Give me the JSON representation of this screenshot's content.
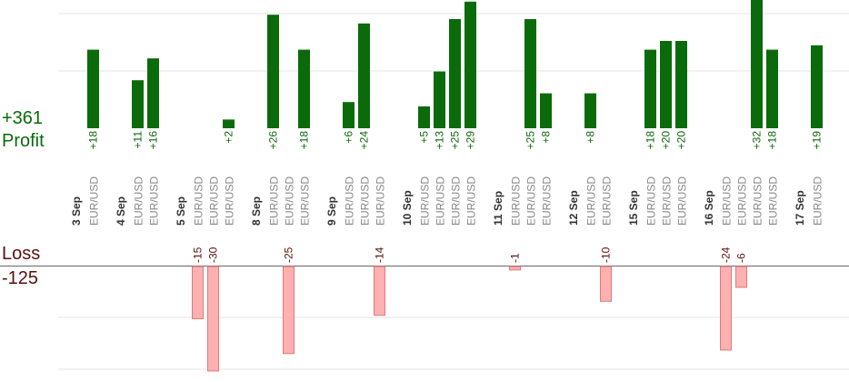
{
  "summary": {
    "profit_total": "+361",
    "profit_label": "Profit",
    "loss_label": "Loss",
    "loss_total": "-125"
  },
  "colors": {
    "profit": "#0b6b0b",
    "profit_text": "#0a6a0a",
    "loss": "#ffb0b0",
    "loss_stroke": "#e07a7a",
    "loss_text": "#5a1010",
    "grid": "#e6e6e6",
    "axis": "#666666",
    "date_text": "#333333",
    "pair_text": "#888888"
  },
  "chart_data": {
    "type": "bar",
    "title": "",
    "xlabel": "",
    "ylabel": "",
    "grid": true,
    "days": [
      {
        "date": "3 Sep",
        "trades": [
          {
            "pair": "EUR/USD",
            "value": 18
          }
        ]
      },
      {
        "date": "4 Sep",
        "trades": [
          {
            "pair": "EUR/USD",
            "value": 11
          },
          {
            "pair": "EUR/USD",
            "value": 16
          }
        ]
      },
      {
        "date": "5 Sep",
        "trades": [
          {
            "pair": "EUR/USD",
            "value": -15
          },
          {
            "pair": "EUR/USD",
            "value": -30
          },
          {
            "pair": "EUR/USD",
            "value": 2
          }
        ]
      },
      {
        "date": "8 Sep",
        "trades": [
          {
            "pair": "EUR/USD",
            "value": 26
          },
          {
            "pair": "EUR/USD",
            "value": -25
          },
          {
            "pair": "EUR/USD",
            "value": 18
          }
        ]
      },
      {
        "date": "9 Sep",
        "trades": [
          {
            "pair": "EUR/USD",
            "value": 6
          },
          {
            "pair": "EUR/USD",
            "value": 24
          },
          {
            "pair": "EUR/USD",
            "value": -14
          }
        ]
      },
      {
        "date": "10 Sep",
        "trades": [
          {
            "pair": "EUR/USD",
            "value": 5
          },
          {
            "pair": "EUR/USD",
            "value": 13
          },
          {
            "pair": "EUR/USD",
            "value": 25
          },
          {
            "pair": "EUR/USD",
            "value": 29
          }
        ]
      },
      {
        "date": "11 Sep",
        "trades": [
          {
            "pair": "EUR/USD",
            "value": -1
          },
          {
            "pair": "EUR/USD",
            "value": 25
          },
          {
            "pair": "EUR/USD",
            "value": 8
          }
        ]
      },
      {
        "date": "12 Sep",
        "trades": [
          {
            "pair": "EUR/USD",
            "value": 8
          },
          {
            "pair": "EUR/USD",
            "value": -10
          }
        ]
      },
      {
        "date": "15 Sep",
        "trades": [
          {
            "pair": "EUR/USD",
            "value": 18
          },
          {
            "pair": "EUR/USD",
            "value": 20
          },
          {
            "pair": "EUR/USD",
            "value": 20
          }
        ]
      },
      {
        "date": "16 Sep",
        "trades": [
          {
            "pair": "EUR/USD",
            "value": -24
          },
          {
            "pair": "EUR/USD",
            "value": -6
          },
          {
            "pair": "EUR/USD",
            "value": 32
          },
          {
            "pair": "EUR/USD",
            "value": 18
          }
        ]
      },
      {
        "date": "17 Sep",
        "trades": [
          {
            "pair": "EUR/USD",
            "value": 19
          }
        ]
      }
    ]
  }
}
